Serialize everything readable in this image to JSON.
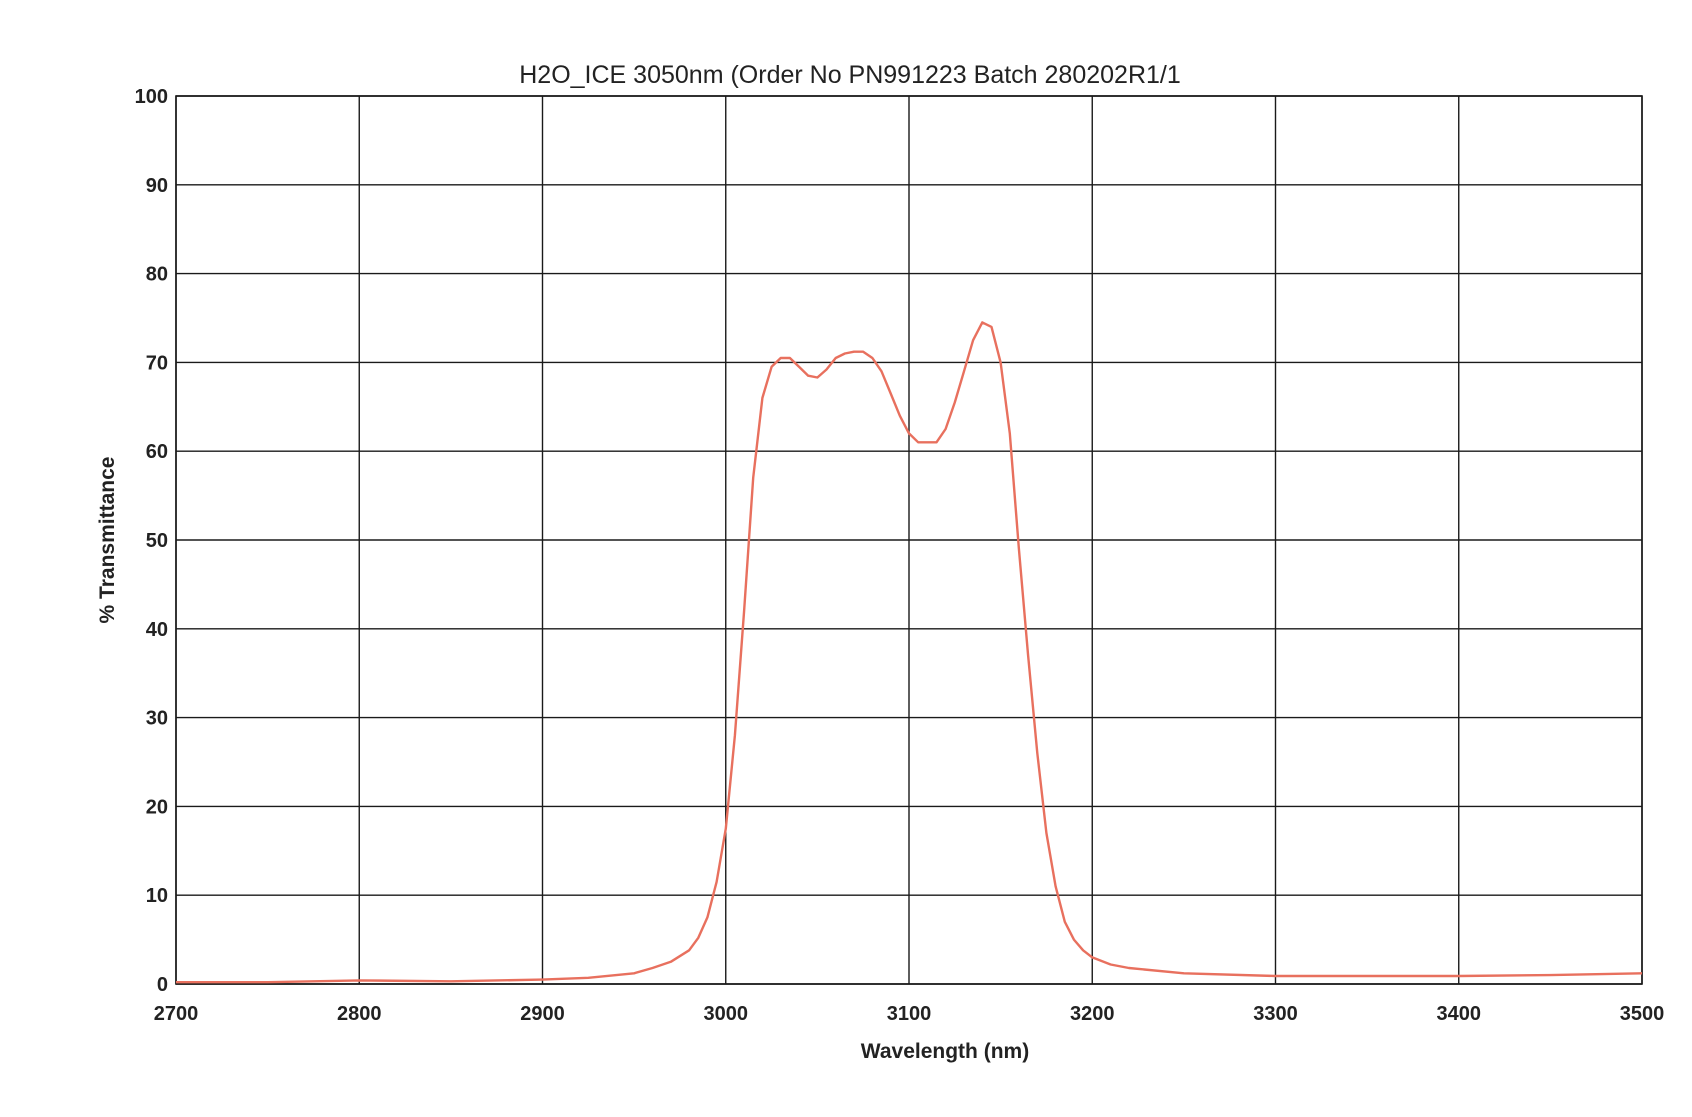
{
  "chart_data": {
    "type": "line",
    "title": "H2O_ICE 3050nm (Order No PN991223 Batch 280202R1/1",
    "xlabel": "Wavelength (nm)",
    "ylabel": "% Transmittance",
    "xlim": [
      2700,
      3500
    ],
    "ylim": [
      0,
      100
    ],
    "xticks": [
      2700,
      2800,
      2900,
      3000,
      3100,
      3200,
      3300,
      3400,
      3500
    ],
    "yticks": [
      0,
      10,
      20,
      30,
      40,
      50,
      60,
      70,
      80,
      90,
      100
    ],
    "grid": true,
    "legend": "none",
    "series": [
      {
        "color": "#e8705e",
        "x": [
          2700,
          2750,
          2800,
          2850,
          2900,
          2925,
          2950,
          2960,
          2970,
          2980,
          2985,
          2990,
          2995,
          3000,
          3005,
          3010,
          3015,
          3020,
          3025,
          3030,
          3035,
          3040,
          3045,
          3050,
          3055,
          3060,
          3065,
          3070,
          3075,
          3080,
          3085,
          3090,
          3095,
          3100,
          3105,
          3110,
          3115,
          3120,
          3125,
          3130,
          3135,
          3140,
          3145,
          3150,
          3155,
          3160,
          3165,
          3170,
          3175,
          3180,
          3185,
          3190,
          3195,
          3200,
          3210,
          3220,
          3250,
          3300,
          3350,
          3400,
          3450,
          3500
        ],
        "y": [
          0.2,
          0.2,
          0.4,
          0.3,
          0.5,
          0.7,
          1.2,
          1.8,
          2.5,
          3.8,
          5.2,
          7.5,
          11.5,
          17.5,
          28,
          42,
          57,
          66,
          69.5,
          70.5,
          70.5,
          69.5,
          68.5,
          68.3,
          69.2,
          70.5,
          71,
          71.2,
          71.2,
          70.5,
          69,
          66.5,
          64,
          62,
          61,
          61,
          61,
          62.5,
          65.5,
          69,
          72.5,
          74.5,
          74,
          70,
          62,
          49,
          37,
          26,
          17,
          11,
          7,
          5,
          3.8,
          3,
          2.2,
          1.8,
          1.2,
          0.9,
          0.9,
          0.9,
          1,
          1.2
        ]
      }
    ]
  }
}
